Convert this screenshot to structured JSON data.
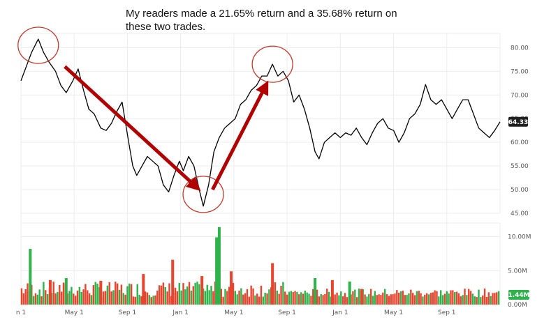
{
  "headline": "My readers made a 21.65% return and a 35.68% return on these two trades.",
  "chart_data": {
    "type": "line",
    "title": "",
    "xlabel": "",
    "ylabel": "",
    "x_tick_labels": [
      "n 1",
      "May 1",
      "Sep 1",
      "Jan 1",
      "May 1",
      "Sep 1",
      "Jan 1",
      "May 1",
      "Sep 1"
    ],
    "x_tick_months": [
      0,
      4,
      8,
      12,
      16,
      20,
      24,
      28,
      32
    ],
    "price_axis": {
      "ylim": [
        45,
        83
      ],
      "ticks": [
        "45.00",
        "50.00",
        "55.00",
        "60.00",
        "65.00",
        "70.00",
        "75.00",
        "80.00"
      ]
    },
    "volume_axis": {
      "ylim": [
        0,
        12000000
      ],
      "ticks": [
        "0.00M",
        "5.00M",
        "10.00M"
      ]
    },
    "last_price": {
      "label": "64.33",
      "value": 64.33,
      "color": "#1f1f1f"
    },
    "last_volume": {
      "label": "1.44M",
      "value": 1440000,
      "color": "#2eb34a"
    },
    "series": [
      {
        "kind": "price",
        "color": "#000000",
        "points": [
          [
            0.0,
            73
          ],
          [
            0.4,
            76
          ],
          [
            0.8,
            79
          ],
          [
            1.3,
            81.8
          ],
          [
            1.7,
            79
          ],
          [
            2.1,
            77
          ],
          [
            2.6,
            75
          ],
          [
            3.0,
            72
          ],
          [
            3.4,
            70.5
          ],
          [
            3.9,
            73
          ],
          [
            4.3,
            75.5
          ],
          [
            4.7,
            71
          ],
          [
            5.1,
            67
          ],
          [
            5.5,
            66
          ],
          [
            6.0,
            63
          ],
          [
            6.4,
            62.5
          ],
          [
            6.8,
            64
          ],
          [
            7.2,
            66.5
          ],
          [
            7.6,
            68.5
          ],
          [
            8.1,
            60
          ],
          [
            8.4,
            55
          ],
          [
            8.7,
            53
          ],
          [
            9.1,
            55
          ],
          [
            9.5,
            57
          ],
          [
            9.9,
            56
          ],
          [
            10.3,
            55
          ],
          [
            10.7,
            51
          ],
          [
            11.1,
            49.5
          ],
          [
            11.5,
            53
          ],
          [
            11.9,
            56
          ],
          [
            12.2,
            54
          ],
          [
            12.6,
            57
          ],
          [
            13.0,
            55
          ],
          [
            13.4,
            50
          ],
          [
            13.7,
            46.5
          ],
          [
            14.1,
            51
          ],
          [
            14.5,
            58
          ],
          [
            14.9,
            61
          ],
          [
            15.3,
            63
          ],
          [
            15.7,
            64
          ],
          [
            16.1,
            65
          ],
          [
            16.5,
            68
          ],
          [
            16.9,
            69
          ],
          [
            17.3,
            71
          ],
          [
            17.7,
            72
          ],
          [
            18.1,
            74
          ],
          [
            18.5,
            74
          ],
          [
            18.9,
            76.5
          ],
          [
            19.3,
            74
          ],
          [
            19.7,
            75
          ],
          [
            20.1,
            73
          ],
          [
            20.5,
            68.5
          ],
          [
            20.9,
            70
          ],
          [
            21.3,
            67
          ],
          [
            21.7,
            63
          ],
          [
            22.1,
            58
          ],
          [
            22.4,
            56.5
          ],
          [
            22.8,
            60
          ],
          [
            23.2,
            61
          ],
          [
            23.6,
            62
          ],
          [
            24.0,
            61
          ],
          [
            24.4,
            62
          ],
          [
            24.8,
            61.5
          ],
          [
            25.2,
            63
          ],
          [
            25.6,
            61
          ],
          [
            26.0,
            59.5
          ],
          [
            26.4,
            62
          ],
          [
            26.8,
            64
          ],
          [
            27.2,
            65
          ],
          [
            27.6,
            63
          ],
          [
            28.0,
            62.5
          ],
          [
            28.4,
            60
          ],
          [
            28.8,
            62
          ],
          [
            29.2,
            65
          ],
          [
            29.6,
            66
          ],
          [
            30.0,
            68
          ],
          [
            30.4,
            72.2
          ],
          [
            30.8,
            69
          ],
          [
            31.2,
            68
          ],
          [
            31.6,
            69
          ],
          [
            32.0,
            67
          ],
          [
            32.4,
            65
          ],
          [
            32.8,
            67
          ],
          [
            33.2,
            69
          ],
          [
            33.6,
            69
          ],
          [
            34.0,
            66
          ],
          [
            34.4,
            63
          ],
          [
            34.8,
            62
          ],
          [
            35.2,
            61
          ],
          [
            35.6,
            62.5
          ],
          [
            36.0,
            64.33
          ]
        ]
      },
      {
        "kind": "volume",
        "up_color": "#2eb34a",
        "down_color": "#e8442e",
        "highlights": [
          [
            0.7,
            8200000,
            "up"
          ],
          [
            2.2,
            3600000,
            "down"
          ],
          [
            3.4,
            3900000,
            "up"
          ],
          [
            6.0,
            3500000,
            "down"
          ],
          [
            9.2,
            4500000,
            "down"
          ],
          [
            11.4,
            6600000,
            "down"
          ],
          [
            13.6,
            4200000,
            "down"
          ],
          [
            14.7,
            9900000,
            "up"
          ],
          [
            14.9,
            11400000,
            "up"
          ],
          [
            15.8,
            4900000,
            "down"
          ],
          [
            18.9,
            6100000,
            "down"
          ],
          [
            22.1,
            3900000,
            "up"
          ],
          [
            23.4,
            3600000,
            "down"
          ],
          [
            24.7,
            3400000,
            "up"
          ],
          [
            25.6,
            2300000,
            "down"
          ]
        ]
      }
    ],
    "annotations": {
      "circle_color": "#c0392b",
      "arrow_color": "#b00000",
      "circles": [
        {
          "x": 1.3,
          "y": 80.5
        },
        {
          "x": 13.7,
          "y": 49
        },
        {
          "x": 18.9,
          "y": 76.5
        }
      ],
      "arrows": [
        {
          "from": [
            3.3,
            76
          ],
          "to": [
            13.2,
            50.5
          ]
        },
        {
          "from": [
            14.4,
            50
          ],
          "to": [
            18.4,
            72
          ]
        }
      ]
    },
    "grid": true
  }
}
